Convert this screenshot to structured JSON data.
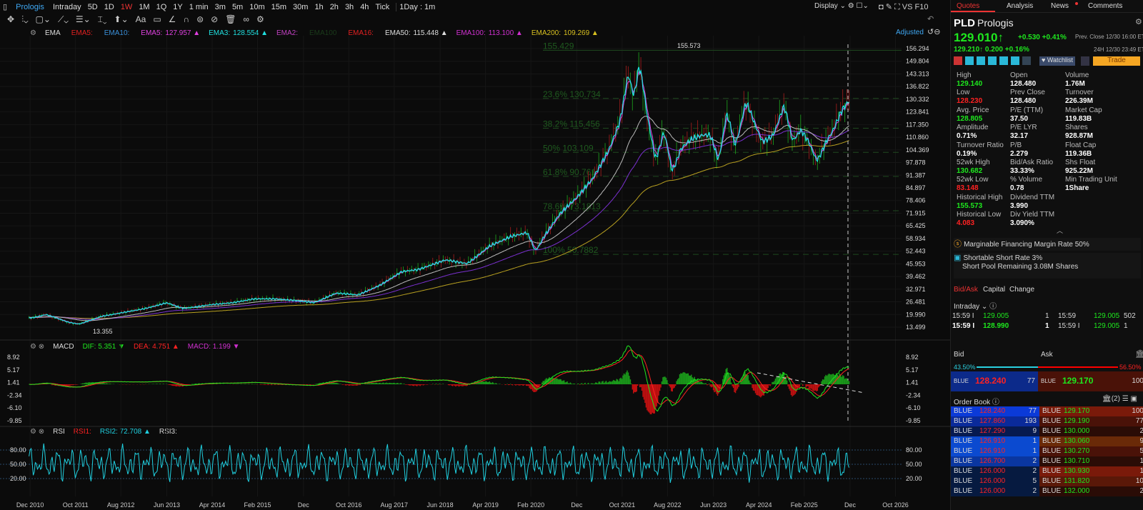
{
  "toolbar": {
    "title": "Prologis",
    "periods": [
      "Intraday",
      "5D",
      "1D",
      "1W",
      "1M",
      "1Q",
      "1Y",
      "1 min",
      "3m",
      "5m",
      "10m",
      "15m",
      "30m",
      "1h",
      "2h",
      "3h",
      "4h",
      "Tick"
    ],
    "active": "1W",
    "range": "1Day : 1m",
    "display": "Display",
    "vs": "VS",
    "f10": "F10",
    "adjusted": "Adjusted"
  },
  "ema_legend": {
    "name": "EMA",
    "items": [
      {
        "label": "EMA5:",
        "value": "",
        "color": "#e02020"
      },
      {
        "label": "EMA10:",
        "value": "",
        "color": "#3a8fd8"
      },
      {
        "label": "EMA5:",
        "value": "127.957 ▲",
        "color": "#e040e0"
      },
      {
        "label": "EMA3:",
        "value": "128.554 ▲",
        "color": "#20e0e0"
      },
      {
        "label": "EMA2:",
        "value": "",
        "color": "#c040c0"
      },
      {
        "label": "EMA100",
        "value": "",
        "color": "#1a3a1a"
      },
      {
        "label": "EMA16:",
        "value": "",
        "color": "#e02020"
      },
      {
        "label": "EMA50:",
        "value": "115.448 ▲",
        "color": "#dddddd"
      },
      {
        "label": "EMA100:",
        "value": "113.100 ▲",
        "color": "#d030d0"
      },
      {
        "label": "EMA200:",
        "value": "109.269 ▲",
        "color": "#d8c020"
      }
    ]
  },
  "macd_legend": {
    "name": "MACD",
    "dif": "DIF:  5.351 ▼",
    "dea": "DEA:  4.751 ▲",
    "macd": "MACD:  1.199 ▼"
  },
  "rsi_legend": {
    "name": "RSI",
    "rsi1": "RSI1:",
    "rsi2": "RSI2:  72.708 ▲",
    "rsi3": "RSI3:"
  },
  "chart_data": {
    "type": "line",
    "title": "Prologis 1W",
    "price_ticks": [
      "156.294",
      "149.804",
      "143.313",
      "136.822",
      "130.332",
      "123.841",
      "117.350",
      "110.860",
      "104.369",
      "97.878",
      "91.387",
      "84.897",
      "78.406",
      "71.915",
      "65.425",
      "58.934",
      "52.443",
      "45.953",
      "39.462",
      "32.971",
      "26.481",
      "19.990",
      "13.499"
    ],
    "ylim": [
      13.499,
      156.294
    ],
    "x_ticks": [
      {
        "label": "Dec 2010",
        "t": 2010.92
      },
      {
        "label": "Oct 2011",
        "t": 2011.75
      },
      {
        "label": "Aug 2012",
        "t": 2012.58
      },
      {
        "label": "Jun 2013",
        "t": 2013.42
      },
      {
        "label": "Apr 2014",
        "t": 2014.25
      },
      {
        "label": "Feb 2015",
        "t": 2015.08
      },
      {
        "label": "Dec",
        "t": 2015.92
      },
      {
        "label": "Oct 2016",
        "t": 2016.75
      },
      {
        "label": "Aug 2017",
        "t": 2017.58
      },
      {
        "label": "Jun 2018",
        "t": 2018.42
      },
      {
        "label": "Apr 2019",
        "t": 2019.25
      },
      {
        "label": "Feb 2020",
        "t": 2020.08
      },
      {
        "label": "Dec",
        "t": 2020.92
      },
      {
        "label": "Oct 2021",
        "t": 2021.75
      },
      {
        "label": "Aug 2022",
        "t": 2022.58
      },
      {
        "label": "Jun 2023",
        "t": 2023.42
      },
      {
        "label": "Apr 2024",
        "t": 2024.25
      },
      {
        "label": "Feb 2025",
        "t": 2025.08
      },
      {
        "label": "Dec",
        "t": 2025.92
      },
      {
        "label": "Oct 2026",
        "t": 2026.75
      }
    ],
    "xlim": [
      2010.5,
      2026.9
    ],
    "price": [
      [
        2010.9,
        18
      ],
      [
        2011.2,
        20
      ],
      [
        2011.6,
        16
      ],
      [
        2011.8,
        15
      ],
      [
        2012.2,
        19
      ],
      [
        2012.6,
        21
      ],
      [
        2013.0,
        23
      ],
      [
        2013.4,
        26
      ],
      [
        2013.7,
        23
      ],
      [
        2014.2,
        25
      ],
      [
        2014.6,
        26
      ],
      [
        2015.0,
        28
      ],
      [
        2015.4,
        28
      ],
      [
        2015.8,
        27
      ],
      [
        2016.1,
        26
      ],
      [
        2016.5,
        31
      ],
      [
        2016.9,
        30
      ],
      [
        2017.3,
        35
      ],
      [
        2017.7,
        42
      ],
      [
        2018.0,
        43
      ],
      [
        2018.5,
        48
      ],
      [
        2018.9,
        46
      ],
      [
        2019.3,
        55
      ],
      [
        2019.7,
        60
      ],
      [
        2020.0,
        62
      ],
      [
        2020.15,
        52
      ],
      [
        2020.3,
        60
      ],
      [
        2020.6,
        72
      ],
      [
        2020.9,
        80
      ],
      [
        2021.2,
        90
      ],
      [
        2021.5,
        105
      ],
      [
        2021.7,
        120
      ],
      [
        2021.85,
        145
      ],
      [
        2021.95,
        130
      ],
      [
        2022.05,
        150
      ],
      [
        2022.2,
        120
      ],
      [
        2022.35,
        98
      ],
      [
        2022.5,
        115
      ],
      [
        2022.65,
        92
      ],
      [
        2022.8,
        105
      ],
      [
        2023.0,
        110
      ],
      [
        2023.2,
        112
      ],
      [
        2023.35,
        112
      ],
      [
        2023.5,
        98
      ],
      [
        2023.65,
        125
      ],
      [
        2023.8,
        105
      ],
      [
        2024.0,
        130
      ],
      [
        2024.15,
        118
      ],
      [
        2024.3,
        108
      ],
      [
        2024.5,
        112
      ],
      [
        2024.7,
        128
      ],
      [
        2024.85,
        108
      ],
      [
        2025.0,
        115
      ],
      [
        2025.15,
        108
      ],
      [
        2025.3,
        98
      ],
      [
        2025.45,
        108
      ],
      [
        2025.6,
        115
      ],
      [
        2025.75,
        125
      ],
      [
        2025.9,
        130
      ]
    ],
    "high_label": "155.573",
    "low_label": "13.355",
    "fib": [
      {
        "label": "155.429",
        "v": 155.429
      },
      {
        "label": "23.6% 130.734",
        "v": 130.734
      },
      {
        "label": "38.2% 115.456",
        "v": 115.456
      },
      {
        "label": "50% 103.109",
        "v": 103.109
      },
      {
        "label": "61.8% 90.761",
        "v": 90.761
      },
      {
        "label": "78.6% 73.1813",
        "v": 73.1813
      },
      {
        "label": "100% 50.7882",
        "v": 50.7882
      }
    ],
    "macd_ticks": [
      "8.92",
      "5.17",
      "1.41",
      "-2.34",
      "-6.10",
      "-9.85"
    ],
    "rsi_ticks": [
      "80.00",
      "50.00",
      "20.00"
    ],
    "colors": {
      "ema50": "#bbbbbb",
      "ema100": "#7a30d0",
      "ema200": "#b8a020",
      "price": "#20e0e0",
      "dif": "#1ee81e",
      "dea": "#f22",
      "rsi": "#20d0e0"
    }
  },
  "quote": {
    "tabs": [
      "Quotes",
      "Analysis",
      "News",
      "Comments"
    ],
    "symbol": "PLD",
    "name": "Prologis",
    "price": "129.010↑",
    "change": "+0.530 +0.41%",
    "prev_close_label": "Prev.  Close 12/30 16:00 ET",
    "ah_price": "129.210↑  0.200 +0.16%",
    "ah_label": "24H 12/30 23:49 ET",
    "watchlist": "Watchlist",
    "trade": "Trade",
    "stats": [
      [
        {
          "l": "High",
          "v": "129.140",
          "c": "g"
        },
        {
          "l": "Open",
          "v": "128.480"
        },
        {
          "l": "Volume",
          "v": "1.76M"
        }
      ],
      [
        {
          "l": "Low",
          "v": "128.230",
          "c": "r"
        },
        {
          "l": "Prev Close",
          "v": "128.480"
        },
        {
          "l": "Turnover",
          "v": "226.39M"
        }
      ],
      [
        {
          "l": "Avg. Price",
          "v": "128.805",
          "c": "g"
        },
        {
          "l": "P/E (TTM)",
          "v": "37.50"
        },
        {
          "l": "Market Cap",
          "v": "119.83B"
        }
      ],
      [
        {
          "l": "Amplitude",
          "v": "0.71%"
        },
        {
          "l": "P/E LYR",
          "v": "32.17"
        },
        {
          "l": "Shares",
          "v": "928.87M"
        }
      ],
      [
        {
          "l": "Turnover Ratio",
          "v": "0.19%"
        },
        {
          "l": "P/B",
          "v": "2.279"
        },
        {
          "l": "Float Cap",
          "v": "119.36B"
        }
      ],
      [
        {
          "l": "52wk High",
          "v": "130.682",
          "c": "g"
        },
        {
          "l": "Bid/Ask Ratio",
          "v": "33.33%"
        },
        {
          "l": "Shs Float",
          "v": "925.22M"
        }
      ],
      [
        {
          "l": "52wk Low",
          "v": "83.148",
          "c": "r"
        },
        {
          "l": "% Volume",
          "v": "0.78"
        },
        {
          "l": "Min Trading Unit",
          "v": "1Share"
        }
      ],
      [
        {
          "l": "Historical High",
          "v": "155.573",
          "c": "g"
        },
        {
          "l": "Dividend TTM",
          "v": "3.990"
        }
      ],
      [
        {
          "l": "Historical Low",
          "v": "4.083",
          "c": "r"
        },
        {
          "l": "Div Yield TTM",
          "v": "3.090%"
        }
      ]
    ],
    "margin": "Marginable Financing Margin Rate 50%",
    "short": "Shortable Short Rate 3%",
    "short_pool": "Short Pool Remaining 3.08M Shares"
  },
  "bidask": {
    "tabs": [
      "Bid/Ask",
      "Capital",
      "Change"
    ],
    "intraday": "Intraday",
    "ticks": [
      [
        "15:59 I",
        "129.005",
        "1",
        "15:59",
        "129.005",
        "502"
      ],
      [
        "15:59 I",
        "128.990",
        "1",
        "15:59 I",
        "129.005",
        "1"
      ]
    ],
    "bid": "Bid",
    "ask": "Ask",
    "bid_pct": "43.50%",
    "ask_pct": "56.50%",
    "bid_frac": 0.435,
    "best_bid": {
      "ex": "BLUE",
      "price": "128.240",
      "size": "77"
    },
    "best_ask": {
      "ex": "BLUE",
      "price": "129.170",
      "size": "100"
    },
    "order_book": "Order Book",
    "brokers": "(2)",
    "rows": [
      [
        "BLUE",
        "128.240",
        "77",
        "BLUE",
        "129.170",
        "100"
      ],
      [
        "BLUE",
        "127.860",
        "193",
        "BLUE",
        "129.190",
        "77"
      ],
      [
        "BLUE",
        "127.290",
        "9",
        "BLUE",
        "130.000",
        "2"
      ],
      [
        "BLUE",
        "126.910",
        "1",
        "BLUE",
        "130.060",
        "9"
      ],
      [
        "BLUE",
        "126.910",
        "1",
        "BLUE",
        "130.270",
        "5"
      ],
      [
        "BLUE",
        "126.700",
        "2",
        "BLUE",
        "130.710",
        "1"
      ],
      [
        "BLUE",
        "126.000",
        "2",
        "BLUE",
        "130.930",
        "1"
      ],
      [
        "BLUE",
        "126.000",
        "5",
        "BLUE",
        "131.820",
        "10"
      ],
      [
        "BLUE",
        "126.000",
        "2",
        "BLUE",
        "132.000",
        "2"
      ]
    ]
  }
}
